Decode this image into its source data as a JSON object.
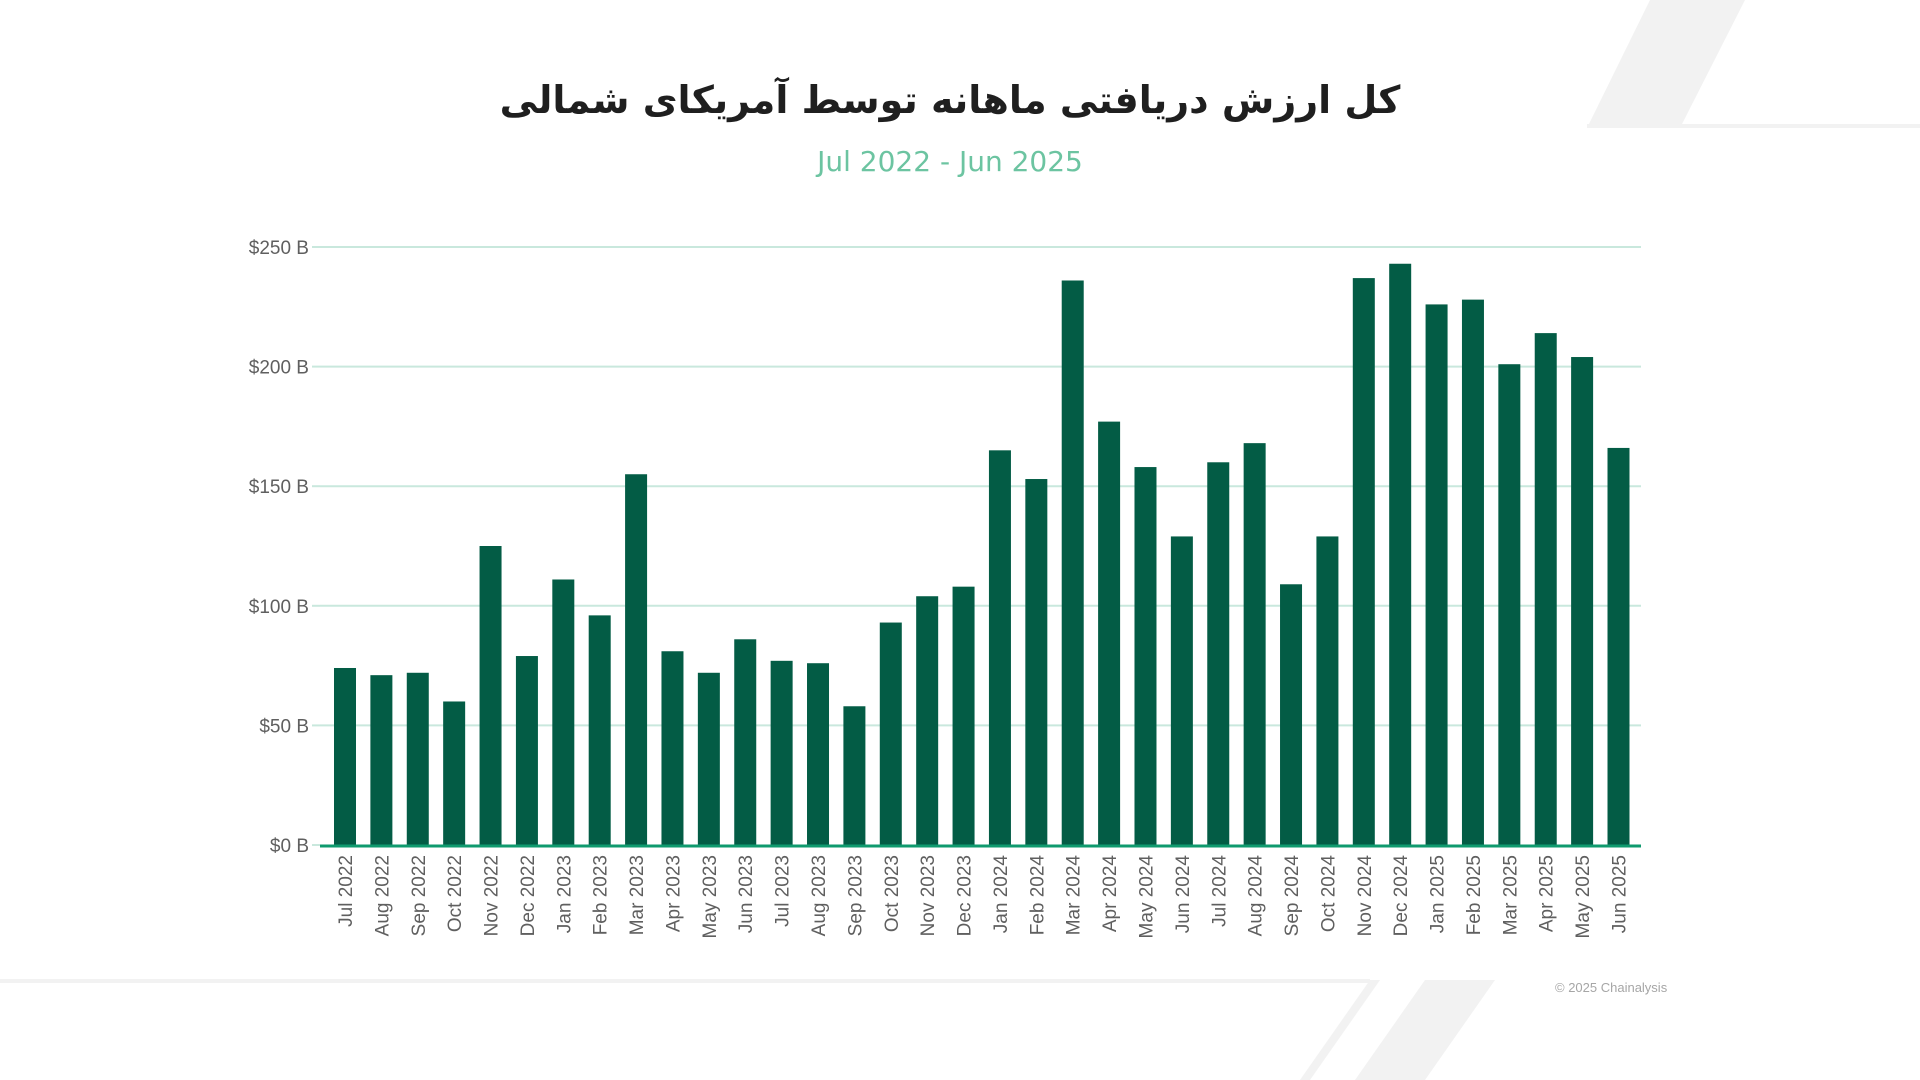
{
  "chart_data": {
    "type": "bar",
    "title": "کل ارزش دریافتی ماهانه توسط آمریکای شمالی",
    "subtitle": "Jul 2022 - Jun 2025",
    "xlabel": "",
    "ylabel": "",
    "ylim": [
      0,
      250
    ],
    "yticks": [
      "$0 B",
      "$50 B",
      "$100 B",
      "$150 B",
      "$200 B",
      "$250 B"
    ],
    "ytick_values": [
      0,
      50,
      100,
      150,
      200,
      250
    ],
    "grid": true,
    "legend": "none",
    "bar_color": "#035c45",
    "gridline_color": "#c9e8dd",
    "categories": [
      "Jul 2022",
      "Aug 2022",
      "Sep 2022",
      "Oct 2022",
      "Nov 2022",
      "Dec 2022",
      "Jan 2023",
      "Feb 2023",
      "Mar 2023",
      "Apr 2023",
      "May 2023",
      "Jun 2023",
      "Jul 2023",
      "Aug 2023",
      "Sep 2023",
      "Oct 2023",
      "Nov 2023",
      "Dec 2023",
      "Jan 2024",
      "Feb 2024",
      "Mar 2024",
      "Apr 2024",
      "May 2024",
      "Jun 2024",
      "Jul 2024",
      "Aug 2024",
      "Sep 2024",
      "Oct 2024",
      "Nov 2024",
      "Dec 2024",
      "Jan 2025",
      "Feb 2025",
      "Mar 2025",
      "Apr 2025",
      "May 2025",
      "Jun 2025"
    ],
    "values": [
      74,
      71,
      72,
      60,
      125,
      79,
      111,
      96,
      155,
      81,
      72,
      86,
      77,
      76,
      58,
      93,
      104,
      108,
      165,
      153,
      236,
      177,
      158,
      129,
      160,
      168,
      109,
      129,
      237,
      243,
      226,
      228,
      201,
      214,
      204,
      166
    ]
  },
  "footer": {
    "copyright": "© 2025 Chainalysis"
  },
  "colors": {
    "subtitle": "#6cc4a1",
    "title": "#1f1f1f",
    "tick_label": "#5f5f5f"
  }
}
